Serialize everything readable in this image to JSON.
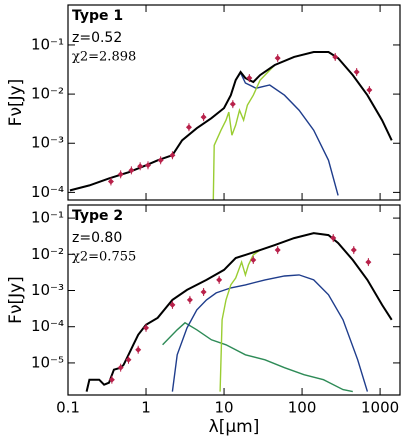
{
  "chart_data": [
    {
      "type": "line",
      "title": "Type 1",
      "annotations": [
        "z=0.52",
        "χ2=2.898"
      ],
      "ylabel": "Fν[Jy]",
      "xscale": "log",
      "yscale": "log",
      "xlim": [
        0.1,
        1800
      ],
      "ylim": [
        7e-05,
        0.65
      ],
      "xticks": [
        0.1,
        1,
        10,
        100,
        1000
      ],
      "show_xtick_labels": false,
      "yticks": [
        {
          "value": 0.1,
          "label": "10⁻¹"
        },
        {
          "value": 0.01,
          "label": "10⁻²"
        },
        {
          "value": 0.001,
          "label": "10⁻³"
        },
        {
          "value": 0.0001,
          "label": "10⁻⁴"
        }
      ],
      "series": [
        {
          "type": "line",
          "color": "#1f3d8c",
          "x": [
            0.106,
            0.188,
            0.335,
            0.596,
            1,
            1.41,
            2.18,
            2.9,
            4.47,
            6.88,
            10,
            12.2,
            14.1,
            16.3,
            18.8,
            25.7,
            38.5,
            59.6,
            91.6,
            141,
            218,
            290
          ],
          "values": [
            0.00011,
            0.000139,
            0.000193,
            0.000256,
            0.000356,
            0.00045,
            0.00057,
            0.00115,
            0.00202,
            0.00324,
            0.0052,
            0.0095,
            0.0193,
            0.027,
            0.0168,
            0.0132,
            0.0153,
            0.0095,
            0.0047,
            0.00184,
            0.00045,
            8.7e-05
          ]
        },
        {
          "type": "line",
          "color": "#9acd32",
          "x": [
            7.29,
            7.49,
            9.15,
            10.6,
            11.5,
            12.6,
            14.1,
            15.8,
            17.8,
            19.9,
            23.7,
            29,
            44.7,
            79,
            141,
            218,
            290,
            447,
            688,
            1060,
            1410
          ],
          "values": [
            7e-05,
            0.00091,
            0.00184,
            0.00294,
            0.0043,
            0.00146,
            0.00235,
            0.0047,
            0.00294,
            0.00597,
            0.0095,
            0.0193,
            0.039,
            0.057,
            0.072,
            0.072,
            0.054,
            0.0244,
            0.0095,
            0.00295,
            0.00115
          ]
        },
        {
          "type": "line",
          "color": "#000000",
          "x": [
            0.106,
            0.188,
            0.335,
            0.596,
            1,
            1.41,
            2.18,
            2.9,
            4.47,
            6.88,
            10,
            12.2,
            14.1,
            16.3,
            18.8,
            23.7,
            29,
            44.7,
            79,
            141,
            218,
            290,
            447,
            688,
            1060,
            1410
          ],
          "values": [
            0.00011,
            0.000139,
            0.000193,
            0.000256,
            0.000356,
            0.00045,
            0.00057,
            0.00115,
            0.00202,
            0.00324,
            0.0052,
            0.0095,
            0.0193,
            0.0281,
            0.0212,
            0.0176,
            0.0244,
            0.039,
            0.057,
            0.072,
            0.072,
            0.054,
            0.0244,
            0.0095,
            0.00295,
            0.00115
          ]
        },
        {
          "type": "scatter",
          "color": "#b8214a",
          "x": [
            0.355,
            0.473,
            0.649,
            0.841,
            1.06,
            1.54,
            2.18,
            3.55,
            5.47,
            12.96,
            21.1,
            48.7,
            266,
            501,
            729
          ],
          "values": [
            0.000167,
            0.000233,
            0.000281,
            0.00034,
            0.000356,
            0.00045,
            0.00057,
            0.00212,
            0.0034,
            0.00625,
            0.0212,
            0.054,
            0.057,
            0.0281,
            0.0121
          ]
        }
      ]
    },
    {
      "type": "line",
      "title": "Type 2",
      "annotations": [
        "z=0.80",
        "χ2=0.755"
      ],
      "ylabel": "Fν[Jy]",
      "xlabel": "λ[μm]",
      "xscale": "log",
      "yscale": "log",
      "xlim": [
        0.1,
        1800
      ],
      "ylim": [
        1.3e-06,
        0.23
      ],
      "xticks": [
        0.1,
        1,
        10,
        100,
        1000
      ],
      "show_xtick_labels": true,
      "yticks": [
        {
          "value": 0.1,
          "label": "10⁻¹"
        },
        {
          "value": 0.01,
          "label": "10⁻²"
        },
        {
          "value": 0.001,
          "label": "10⁻³"
        },
        {
          "value": 0.0001,
          "label": "10⁻⁴"
        },
        {
          "value": 1e-05,
          "label": "10⁻⁵"
        }
      ],
      "series": [
        {
          "type": "line",
          "color": "#2e8b57",
          "x": [
            1.63,
            2.51,
            3.16,
            4.47,
            6.88,
            10.6,
            18.8,
            33.5,
            59.6,
            106,
            188,
            335,
            447
          ],
          "values": [
            3.17e-05,
            8.2e-05,
            0.000128,
            8.2e-05,
            4.35e-05,
            3.17e-05,
            1.68e-05,
            1.22e-05,
            7.4e-06,
            4.73e-06,
            3.44e-06,
            1.83e-06,
            1.61e-06
          ]
        },
        {
          "type": "line",
          "color": "#1f3d8c",
          "x": [
            2.18,
            2.51,
            3.35,
            4.47,
            5.96,
            7.94,
            12.2,
            18.8,
            33.5,
            59.6,
            91.7,
            141,
            218,
            335,
            516,
            688
          ],
          "values": [
            1.61e-06,
            1.68e-05,
            9.3e-05,
            0.000292,
            0.00055,
            0.00086,
            0.00118,
            0.00143,
            0.00196,
            0.00252,
            0.00269,
            0.00196,
            0.00076,
            0.000155,
            1.22e-05,
            1.61e-06
          ]
        },
        {
          "type": "line",
          "color": "#9acd32",
          "x": [
            8.91,
            9.44,
            10.6,
            12.2,
            14.1,
            15.4,
            16.8,
            18.8,
            20.5,
            23.7,
            29,
            44.7,
            79,
            141,
            218,
            290,
            447,
            688,
            1060,
            1410
          ],
          "values": [
            1.61e-06,
            0.000155,
            0.00055,
            0.00143,
            0.00222,
            0.0037,
            0.0061,
            0.00269,
            0.00507,
            0.0096,
            0.0131,
            0.018,
            0.0281,
            0.0386,
            0.034,
            0.0205,
            0.00697,
            0.00196,
            0.0004,
            0.000155
          ]
        },
        {
          "type": "line",
          "color": "#000000",
          "x": [
            0.173,
            0.188,
            0.251,
            0.29,
            0.335,
            0.387,
            0.473,
            0.516,
            0.596,
            0.688,
            0.794,
            1,
            1.41,
            2.18,
            3.35,
            5.96,
            10,
            14.1,
            18.8,
            29,
            44.7,
            79,
            141,
            218,
            290,
            447,
            688,
            1060,
            1410
          ],
          "values": [
            1.61e-06,
            3.44e-06,
            3.44e-06,
            2.5e-06,
            2.85e-06,
            6.5e-06,
            7.4e-06,
            8.9e-06,
            1.68e-05,
            3.17e-05,
            5.98e-05,
            0.000113,
            0.000176,
            0.00055,
            0.00104,
            0.00196,
            0.0037,
            0.0079,
            0.0096,
            0.0131,
            0.018,
            0.0281,
            0.0386,
            0.034,
            0.0205,
            0.00697,
            0.00196,
            0.0004,
            0.000155
          ]
        },
        {
          "type": "scatter",
          "color": "#b8214a",
          "x": [
            0.365,
            0.473,
            0.596,
            0.794,
            1,
            2.18,
            3.65,
            5.47,
            8.66,
            23.7,
            48.7,
            251,
            460,
            708
          ],
          "values": [
            3.44e-06,
            7.4e-06,
            1.22e-05,
            2.31e-05,
            9.3e-05,
            0.0004,
            0.00055,
            0.00091,
            0.00196,
            0.00697,
            0.0131,
            0.0281,
            0.0131,
            0.0061
          ]
        }
      ]
    }
  ]
}
